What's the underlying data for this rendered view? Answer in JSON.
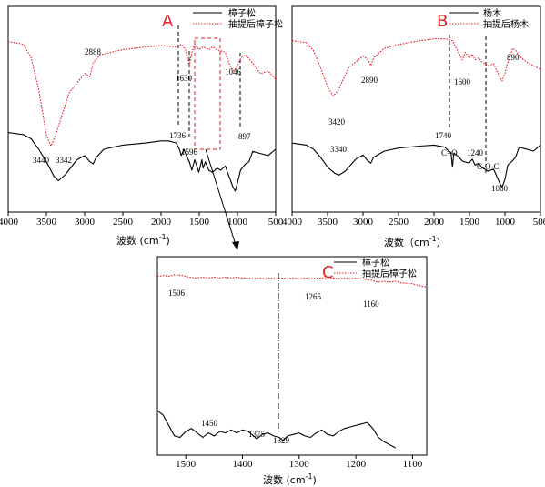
{
  "chart_data": [
    {
      "panel": "A",
      "type": "line",
      "xlabel": "波数 (cm⁻¹)",
      "xticks": [
        4000,
        3500,
        3000,
        2500,
        2000,
        1500,
        1000,
        500
      ],
      "xlim": [
        4000,
        500
      ],
      "series": [
        {
          "name": "樟子松",
          "color": "#000000",
          "style": "solid",
          "points": [
            [
              4000,
              0.44
            ],
            [
              3800,
              0.46
            ],
            [
              3700,
              0.5
            ],
            [
              3600,
              0.6
            ],
            [
              3500,
              0.72
            ],
            [
              3400,
              0.86
            ],
            [
              3342,
              0.9
            ],
            [
              3250,
              0.84
            ],
            [
              3100,
              0.7
            ],
            [
              3000,
              0.66
            ],
            [
              2930,
              0.72
            ],
            [
              2888,
              0.74
            ],
            [
              2850,
              0.68
            ],
            [
              2750,
              0.6
            ],
            [
              2500,
              0.56
            ],
            [
              2200,
              0.54
            ],
            [
              2000,
              0.52
            ],
            [
              1900,
              0.52
            ],
            [
              1800,
              0.54
            ],
            [
              1760,
              0.6
            ],
            [
              1736,
              0.66
            ],
            [
              1700,
              0.6
            ],
            [
              1680,
              0.64
            ],
            [
              1630,
              0.72
            ],
            [
              1596,
              0.8
            ],
            [
              1560,
              0.7
            ],
            [
              1506,
              0.82
            ],
            [
              1465,
              0.7
            ],
            [
              1450,
              0.78
            ],
            [
              1420,
              0.72
            ],
            [
              1375,
              0.8
            ],
            [
              1329,
              0.82
            ],
            [
              1265,
              0.78
            ],
            [
              1220,
              0.8
            ],
            [
              1160,
              0.76
            ],
            [
              1110,
              0.86
            ],
            [
              1060,
              0.96
            ],
            [
              1030,
              1.0
            ],
            [
              1000,
              0.92
            ],
            [
              960,
              0.8
            ],
            [
              897,
              0.74
            ],
            [
              850,
              0.72
            ],
            [
              800,
              0.62
            ],
            [
              700,
              0.64
            ],
            [
              600,
              0.66
            ],
            [
              500,
              0.6
            ]
          ]
        },
        {
          "name": "抽提后樟子松",
          "color": "#e8202a",
          "style": "dotted",
          "points": [
            [
              4000,
              0.12
            ],
            [
              3800,
              0.14
            ],
            [
              3700,
              0.24
            ],
            [
              3600,
              0.48
            ],
            [
              3500,
              0.82
            ],
            [
              3440,
              0.9
            ],
            [
              3380,
              0.82
            ],
            [
              3200,
              0.5
            ],
            [
              3000,
              0.36
            ],
            [
              2930,
              0.38
            ],
            [
              2888,
              0.28
            ],
            [
              2800,
              0.22
            ],
            [
              2500,
              0.18
            ],
            [
              2200,
              0.16
            ],
            [
              2000,
              0.15
            ],
            [
              1800,
              0.16
            ],
            [
              1736,
              0.14
            ],
            [
              1680,
              0.18
            ],
            [
              1630,
              0.3
            ],
            [
              1596,
              0.2
            ],
            [
              1560,
              0.14
            ],
            [
              1506,
              0.18
            ],
            [
              1450,
              0.16
            ],
            [
              1375,
              0.18
            ],
            [
              1329,
              0.16
            ],
            [
              1265,
              0.18
            ],
            [
              1160,
              0.2
            ],
            [
              1100,
              0.3
            ],
            [
              1046,
              0.34
            ],
            [
              1000,
              0.3
            ],
            [
              950,
              0.24
            ],
            [
              897,
              0.22
            ],
            [
              800,
              0.28
            ],
            [
              700,
              0.36
            ],
            [
              600,
              0.34
            ],
            [
              500,
              0.4
            ]
          ]
        }
      ],
      "annotations": [
        "3440",
        "3342",
        "2888",
        "1736",
        "1630",
        "1596",
        "1046",
        "897"
      ]
    },
    {
      "panel": "B",
      "type": "line",
      "xlabel": "波数（cm⁻¹）",
      "xticks": [
        4000,
        3500,
        3000,
        2500,
        2000,
        1500,
        1000,
        500
      ],
      "xlim": [
        4000,
        500
      ],
      "series": [
        {
          "name": "杨木",
          "color": "#000000",
          "style": "solid",
          "points": [
            [
              4000,
              0.52
            ],
            [
              3800,
              0.54
            ],
            [
              3700,
              0.58
            ],
            [
              3600,
              0.66
            ],
            [
              3500,
              0.76
            ],
            [
              3400,
              0.82
            ],
            [
              3340,
              0.84
            ],
            [
              3250,
              0.8
            ],
            [
              3100,
              0.68
            ],
            [
              3000,
              0.64
            ],
            [
              2930,
              0.7
            ],
            [
              2890,
              0.72
            ],
            [
              2850,
              0.66
            ],
            [
              2700,
              0.6
            ],
            [
              2500,
              0.57
            ],
            [
              2200,
              0.55
            ],
            [
              2000,
              0.54
            ],
            [
              1850,
              0.56
            ],
            [
              1760,
              0.62
            ],
            [
              1740,
              0.76
            ],
            [
              1720,
              0.62
            ],
            [
              1650,
              0.66
            ],
            [
              1600,
              0.7
            ],
            [
              1505,
              0.72
            ],
            [
              1460,
              0.68
            ],
            [
              1420,
              0.74
            ],
            [
              1370,
              0.72
            ],
            [
              1330,
              0.76
            ],
            [
              1240,
              0.8
            ],
            [
              1160,
              0.78
            ],
            [
              1110,
              0.86
            ],
            [
              1060,
              0.94
            ],
            [
              1040,
              0.96
            ],
            [
              1000,
              0.88
            ],
            [
              960,
              0.74
            ],
            [
              897,
              0.7
            ],
            [
              850,
              0.66
            ],
            [
              800,
              0.56
            ],
            [
              700,
              0.58
            ],
            [
              600,
              0.6
            ],
            [
              500,
              0.54
            ]
          ]
        },
        {
          "name": "抽提后杨木",
          "color": "#e8202a",
          "style": "dotted",
          "points": [
            [
              4000,
              0.14
            ],
            [
              3800,
              0.16
            ],
            [
              3700,
              0.24
            ],
            [
              3600,
              0.42
            ],
            [
              3500,
              0.62
            ],
            [
              3420,
              0.72
            ],
            [
              3350,
              0.66
            ],
            [
              3200,
              0.42
            ],
            [
              3000,
              0.3
            ],
            [
              2930,
              0.34
            ],
            [
              2890,
              0.4
            ],
            [
              2850,
              0.32
            ],
            [
              2700,
              0.22
            ],
            [
              2500,
              0.18
            ],
            [
              2200,
              0.14
            ],
            [
              2000,
              0.12
            ],
            [
              1850,
              0.12
            ],
            [
              1740,
              0.14
            ],
            [
              1700,
              0.2
            ],
            [
              1600,
              0.34
            ],
            [
              1560,
              0.26
            ],
            [
              1505,
              0.32
            ],
            [
              1460,
              0.28
            ],
            [
              1420,
              0.34
            ],
            [
              1370,
              0.32
            ],
            [
              1330,
              0.36
            ],
            [
              1240,
              0.4
            ],
            [
              1160,
              0.38
            ],
            [
              1110,
              0.46
            ],
            [
              1060,
              0.54
            ],
            [
              1040,
              0.56
            ],
            [
              1000,
              0.48
            ],
            [
              950,
              0.34
            ],
            [
              890,
              0.22
            ],
            [
              850,
              0.24
            ],
            [
              800,
              0.3
            ],
            [
              700,
              0.36
            ],
            [
              600,
              0.4
            ],
            [
              500,
              0.44
            ]
          ]
        }
      ],
      "annotations": [
        "3420",
        "3340",
        "2890",
        "1740",
        "C=O",
        "1600",
        "1240",
        "C-O-C",
        "1060",
        "890"
      ]
    },
    {
      "panel": "C",
      "type": "line",
      "xlabel": "波数 (cm⁻¹)",
      "xticks": [
        1500,
        1400,
        1300,
        1200,
        1100
      ],
      "xlim": [
        1550,
        1075
      ],
      "series": [
        {
          "name": "樟子松",
          "color": "#000000",
          "style": "solid",
          "points": [
            [
              1550,
              0.5
            ],
            [
              1540,
              0.56
            ],
            [
              1530,
              0.7
            ],
            [
              1520,
              0.84
            ],
            [
              1510,
              0.86
            ],
            [
              1500,
              0.78
            ],
            [
              1490,
              0.74
            ],
            [
              1480,
              0.8
            ],
            [
              1470,
              0.86
            ],
            [
              1460,
              0.8
            ],
            [
              1450,
              0.84
            ],
            [
              1440,
              0.78
            ],
            [
              1430,
              0.8
            ],
            [
              1420,
              0.76
            ],
            [
              1410,
              0.8
            ],
            [
              1400,
              0.76
            ],
            [
              1390,
              0.78
            ],
            [
              1380,
              0.84
            ],
            [
              1375,
              0.88
            ],
            [
              1365,
              0.82
            ],
            [
              1355,
              0.8
            ],
            [
              1345,
              0.84
            ],
            [
              1335,
              0.86
            ],
            [
              1329,
              0.9
            ],
            [
              1320,
              0.84
            ],
            [
              1310,
              0.82
            ],
            [
              1300,
              0.8
            ],
            [
              1290,
              0.84
            ],
            [
              1280,
              0.86
            ],
            [
              1270,
              0.8
            ],
            [
              1260,
              0.76
            ],
            [
              1250,
              0.82
            ],
            [
              1240,
              0.84
            ],
            [
              1230,
              0.78
            ],
            [
              1220,
              0.74
            ],
            [
              1210,
              0.72
            ],
            [
              1200,
              0.7
            ],
            [
              1190,
              0.68
            ],
            [
              1180,
              0.66
            ],
            [
              1170,
              0.74
            ],
            [
              1160,
              0.86
            ],
            [
              1150,
              0.92
            ],
            [
              1140,
              0.96
            ],
            [
              1130,
              1.0
            ]
          ]
        },
        {
          "name": "抽提后樟子松",
          "color": "#e8202a",
          "style": "dotted",
          "points": [
            [
              1550,
              0.08
            ],
            [
              1540,
              0.06
            ],
            [
              1530,
              0.08
            ],
            [
              1520,
              0.04
            ],
            [
              1506,
              0.06
            ],
            [
              1495,
              0.1
            ],
            [
              1480,
              0.12
            ],
            [
              1470,
              0.1
            ],
            [
              1460,
              0.12
            ],
            [
              1450,
              0.1
            ],
            [
              1440,
              0.12
            ],
            [
              1430,
              0.1
            ],
            [
              1420,
              0.12
            ],
            [
              1410,
              0.1
            ],
            [
              1400,
              0.12
            ],
            [
              1390,
              0.12
            ],
            [
              1380,
              0.14
            ],
            [
              1370,
              0.12
            ],
            [
              1360,
              0.14
            ],
            [
              1350,
              0.12
            ],
            [
              1340,
              0.14
            ],
            [
              1330,
              0.12
            ],
            [
              1320,
              0.14
            ],
            [
              1310,
              0.12
            ],
            [
              1300,
              0.14
            ],
            [
              1290,
              0.12
            ],
            [
              1280,
              0.14
            ],
            [
              1265,
              0.12
            ],
            [
              1250,
              0.14
            ],
            [
              1240,
              0.12
            ],
            [
              1230,
              0.14
            ],
            [
              1220,
              0.12
            ],
            [
              1210,
              0.14
            ],
            [
              1200,
              0.12
            ],
            [
              1190,
              0.14
            ],
            [
              1180,
              0.16
            ],
            [
              1170,
              0.18
            ],
            [
              1160,
              0.22
            ],
            [
              1150,
              0.2
            ],
            [
              1140,
              0.22
            ],
            [
              1130,
              0.2
            ],
            [
              1120,
              0.24
            ],
            [
              1100,
              0.26
            ],
            [
              1090,
              0.3
            ],
            [
              1075,
              0.34
            ]
          ]
        }
      ],
      "annotations": [
        "1506",
        "1265",
        "1160",
        "1450",
        "1375",
        "1329"
      ]
    }
  ],
  "panels": {
    "A": {
      "letter": "A",
      "legend": [
        "樟子松",
        "抽提后樟子松"
      ],
      "xlabel": "波数 (cm",
      "xlabel_sup": "-1",
      "xlabel_end": ")"
    },
    "B": {
      "letter": "B",
      "legend": [
        "杨木",
        "抽提后杨木"
      ],
      "xlabel": "波数（cm",
      "xlabel_sup": "-1",
      "xlabel_end": "）"
    },
    "C": {
      "letter": "C",
      "legend": [
        "樟子松",
        "抽提后樟子松"
      ],
      "xlabel": "波数 (cm",
      "xlabel_sup": "-1",
      "xlabel_end": ")"
    }
  },
  "colors": {
    "accent": "#e8202a",
    "black": "#000000"
  }
}
